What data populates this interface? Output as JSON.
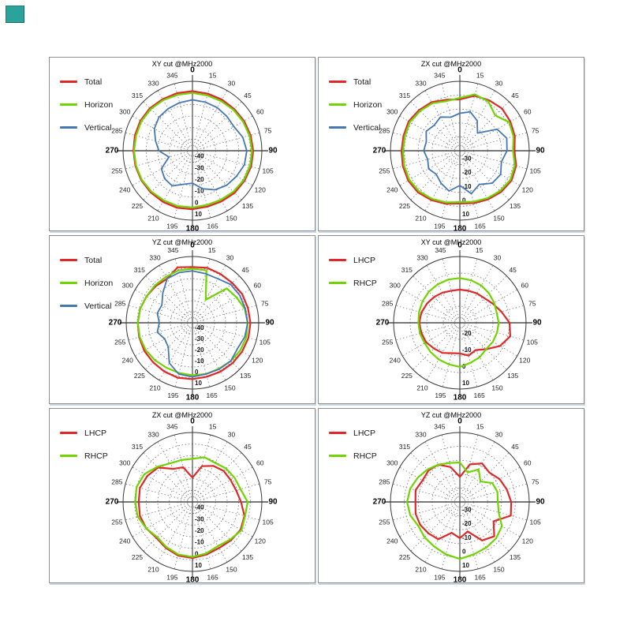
{
  "page": {
    "background": "#ffffff",
    "corner_marker_color": "#2aa39a"
  },
  "polar_common": {
    "angle_step_deg": 15,
    "angle_labels": [
      0,
      15,
      30,
      45,
      60,
      75,
      90,
      105,
      120,
      135,
      150,
      165,
      180,
      195,
      210,
      225,
      240,
      255,
      270,
      285,
      300,
      315,
      330,
      345
    ],
    "bold_angle_labels": [
      0,
      90,
      180,
      270
    ],
    "grid": "dotted-rings-and-spokes",
    "colors": {
      "grid": "#777777",
      "axis": "#4a4a4a",
      "outer_circle": "#3a3a3a",
      "angle_label": "#222222",
      "radial_label": "#111111",
      "title": "#000000"
    },
    "series_colors": {
      "total": "#e02828",
      "horizon": "#6fd400",
      "vertical": "#4577b4",
      "lhcp": "#e02828",
      "rhcp": "#6fd400"
    }
  },
  "chart_data": [
    {
      "type": "polar-line",
      "title": "XY cut @MHz2000",
      "r_min": -50,
      "r_max": 10,
      "r_step": 10,
      "radial_labels": [
        -40,
        -30,
        -20,
        -10,
        0,
        10
      ],
      "legend": [
        "Total",
        "Horizon",
        "Vertical"
      ],
      "series": [
        {
          "name": "Total",
          "color": "#e02828",
          "width": 2.2,
          "values": [
            1.5,
            1,
            1,
            1,
            1.5,
            2,
            2.5,
            2.5,
            2,
            1.5,
            0.5,
            0,
            0.5,
            1,
            1,
            1,
            1,
            1,
            1,
            1.5,
            2,
            2,
            1.5,
            1.5
          ]
        },
        {
          "name": "Horizon",
          "color": "#6fd400",
          "width": 2.2,
          "values": [
            0,
            -0.5,
            -0.5,
            0,
            0.5,
            1,
            1.5,
            1.5,
            1,
            0,
            -1,
            -1.5,
            -1,
            -0.5,
            -0.5,
            0,
            0.5,
            0.5,
            0.5,
            0.5,
            1,
            1,
            0.5,
            0
          ]
        },
        {
          "name": "Vertical",
          "color": "#4577b4",
          "width": 1.8,
          "values": [
            -6,
            -6.5,
            -7,
            -8,
            -8.5,
            -5,
            -3,
            -3.5,
            -6,
            -8,
            -11,
            -16,
            -22,
            -20,
            -15,
            -16,
            -19,
            -29,
            -21,
            -17,
            -12,
            -9,
            -8,
            -7
          ]
        }
      ]
    },
    {
      "type": "polar-line",
      "title": "ZX cut @MHz2000",
      "r_min": -40,
      "r_max": 10,
      "r_step": 10,
      "radial_labels": [
        -30,
        -20,
        -10,
        0,
        10
      ],
      "legend": [
        "Total",
        "Horizon",
        "Vertical"
      ],
      "series": [
        {
          "name": "Total",
          "color": "#e02828",
          "width": 2.2,
          "values": [
            -3,
            1,
            2,
            3,
            2,
            1,
            -0.7,
            2,
            3,
            2,
            0.5,
            -1,
            -2,
            -0.5,
            1,
            2.5,
            3,
            2.5,
            2,
            2,
            2.5,
            1.5,
            0.5,
            -2
          ]
        },
        {
          "name": "Horizon",
          "color": "#6fd400",
          "width": 2.2,
          "values": [
            -2,
            2,
            1,
            -4,
            1,
            0,
            -1.7,
            1,
            2,
            1,
            -0.5,
            -2,
            -3,
            -1.5,
            0,
            1.5,
            2,
            1.5,
            1,
            1,
            1.5,
            0.5,
            -0.5,
            -3
          ]
        },
        {
          "name": "Vertical",
          "color": "#4577b4",
          "width": 1.8,
          "values": [
            -13,
            -11,
            -15,
            -22,
            -9,
            -5,
            -6,
            -9,
            -6,
            -7,
            -12,
            -8,
            -15,
            -10,
            -13,
            -16,
            -14,
            -16,
            -14,
            -15,
            -12,
            -14,
            -12,
            -15
          ]
        }
      ]
    },
    {
      "type": "polar-line",
      "title": "YZ cut @MHz2000",
      "r_min": -50,
      "r_max": 10,
      "r_step": 10,
      "radial_labels": [
        -40,
        -30,
        -20,
        -10,
        0,
        10
      ],
      "legend": [
        "Total",
        "Horizon",
        "Vertical"
      ],
      "series": [
        {
          "name": "Total",
          "color": "#e02828",
          "width": 2.2,
          "values": [
            0.5,
            1.5,
            1,
            1,
            2,
            2,
            2.5,
            2.5,
            2,
            1.5,
            1,
            0.5,
            1,
            1.5,
            1,
            0.5,
            0.5,
            0,
            -0.5,
            -1,
            -2,
            -3,
            -4,
            2
          ]
        },
        {
          "name": "Horizon",
          "color": "#6fd400",
          "width": 2.2,
          "values": [
            -1,
            -1,
            -26,
            -6,
            -4,
            -1,
            0,
            0.5,
            0,
            -1,
            -2,
            -2,
            -2.5,
            -3,
            -3,
            -2,
            -1,
            -0.5,
            -0.5,
            -1,
            -2,
            -2,
            -2,
            -1
          ]
        },
        {
          "name": "Vertical",
          "color": "#4577b4",
          "width": 1.8,
          "values": [
            -3,
            -4,
            -4,
            -1,
            -0.5,
            -0.5,
            0,
            -1,
            -3,
            -1,
            -1.5,
            -2,
            -1,
            -2,
            -8,
            -19,
            -21,
            -17,
            -20,
            -17,
            -18,
            -12,
            -4,
            -3
          ]
        }
      ]
    },
    {
      "type": "polar-line",
      "title": "XY cut @MHz2000",
      "r_min": -30,
      "r_max": 10,
      "r_step": 10,
      "radial_labels": [
        -20,
        -10,
        0,
        10
      ],
      "legend": [
        "LHCP",
        "RHCP"
      ],
      "series": [
        {
          "name": "LHCP",
          "color": "#e02828",
          "width": 2.2,
          "values": [
            -10,
            -10,
            -9.5,
            -9,
            -7,
            -4,
            0,
            1.5,
            -2,
            -7.5,
            -11,
            -9.5,
            -11.5,
            -11,
            -9,
            -8,
            -6.5,
            -6,
            -5.5,
            -6,
            -7,
            -8,
            -9,
            -10
          ]
        },
        {
          "name": "RHCP",
          "color": "#6fd400",
          "width": 2.2,
          "values": [
            -3,
            -3.5,
            -4,
            -5,
            -6,
            -7,
            -6.5,
            -6.8,
            -7,
            -7.5,
            -6,
            -5,
            -3.4,
            -4,
            -4.5,
            -5,
            -5.5,
            -5,
            -5,
            -4.5,
            -4,
            -3.5,
            -3.2,
            -3
          ]
        }
      ]
    },
    {
      "type": "polar-line",
      "title": "ZX cut @MHz2000",
      "r_min": -50,
      "r_max": 10,
      "r_step": 10,
      "radial_labels": [
        -40,
        -30,
        -20,
        -10,
        0,
        10
      ],
      "legend": [
        "LHCP",
        "RHCP"
      ],
      "series": [
        {
          "name": "LHCP",
          "color": "#e02828",
          "width": 2.2,
          "values": [
            -29,
            -18,
            -14,
            -12,
            -12,
            -11,
            -8,
            -3.5,
            -2,
            -3,
            -4,
            -3,
            -1.5,
            -2,
            -4,
            -6,
            -4,
            -3,
            -3.5,
            -3,
            -5,
            -8,
            -17,
            -19
          ]
        },
        {
          "name": "RHCP",
          "color": "#6fd400",
          "width": 2.2,
          "values": [
            -12.7,
            -10,
            -11,
            -9,
            -8,
            -7,
            -2.3,
            -3,
            -1,
            -4,
            -6,
            -4,
            -2.5,
            -3,
            -5,
            -7,
            -4,
            -1,
            -0.5,
            0,
            -2,
            -7,
            -11.5,
            -12.5
          ]
        }
      ]
    },
    {
      "type": "polar-line",
      "title": "YZ cut @MHz2000",
      "r_min": -40,
      "r_max": 10,
      "r_step": 10,
      "radial_labels": [
        -30,
        -20,
        -10,
        0,
        10
      ],
      "legend": [
        "LHCP",
        "RHCP"
      ],
      "series": [
        {
          "name": "LHCP",
          "color": "#e02828",
          "width": 2.2,
          "values": [
            -22,
            -12,
            -8,
            -10,
            -7,
            -5,
            -3,
            -2,
            -12,
            -5,
            -8,
            -18,
            -14,
            -17,
            -9,
            -8,
            -7,
            -7,
            -8,
            -7,
            -9,
            -8,
            -9,
            -14
          ]
        },
        {
          "name": "RHCP",
          "color": "#6fd400",
          "width": 2.2,
          "values": [
            -11.6,
            -18,
            -13,
            -19,
            -13,
            -12,
            -12.6,
            -11,
            -5,
            -3,
            -2,
            -1,
            1,
            -1,
            -3,
            -4,
            -5.5,
            -3,
            -2,
            -3,
            -5,
            -7,
            -9,
            -11
          ]
        }
      ]
    }
  ]
}
